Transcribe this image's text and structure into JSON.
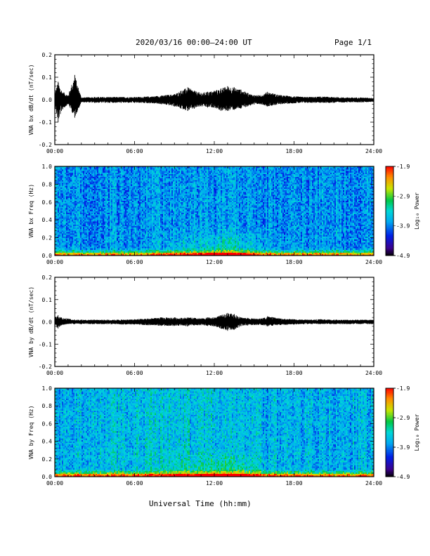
{
  "header": {
    "title": "2020/03/16  00:00–24:00 UT",
    "page": "Page 1/1"
  },
  "x_axis_title": "Universal Time (hh:mm)",
  "chart_data": [
    {
      "type": "line",
      "ylabel": "VNA bx dB/dt (nT/sec)",
      "xlim": [
        0,
        24
      ],
      "ylim": [
        -0.2,
        0.2
      ],
      "x_ticks": [
        "00:00",
        "06:00",
        "12:00",
        "18:00",
        "24:00"
      ],
      "y_ticks": [
        "-0.2",
        "-0.1",
        "0.0",
        "0.1",
        "0.2"
      ],
      "series": [
        {
          "x": [
            0.0,
            0.25,
            0.5,
            1.0,
            1.5,
            2.0,
            3.0,
            4.0,
            5.0,
            6.0,
            7.0,
            8.0,
            9.0,
            9.5,
            10.0,
            10.5,
            11.0,
            11.5,
            12.0,
            12.5,
            13.0,
            13.5,
            14.0,
            14.5,
            15.0,
            15.5,
            16.0,
            17.0,
            18.0,
            19.0,
            20.0,
            21.0,
            22.0,
            23.0,
            24.0
          ],
          "y_max": [
            0.03,
            0.08,
            0.04,
            0.02,
            0.11,
            0.01,
            0.012,
            0.012,
            0.012,
            0.012,
            0.014,
            0.018,
            0.025,
            0.04,
            0.055,
            0.04,
            0.03,
            0.035,
            0.04,
            0.05,
            0.06,
            0.055,
            0.045,
            0.03,
            0.02,
            0.02,
            0.035,
            0.02,
            0.015,
            0.012,
            0.014,
            0.012,
            0.01,
            0.01,
            0.008
          ],
          "y_min": [
            -0.03,
            -0.1,
            -0.05,
            -0.02,
            -0.08,
            -0.012,
            -0.014,
            -0.014,
            -0.014,
            -0.014,
            -0.016,
            -0.02,
            -0.03,
            -0.04,
            -0.05,
            -0.04,
            -0.03,
            -0.035,
            -0.035,
            -0.05,
            -0.05,
            -0.045,
            -0.04,
            -0.03,
            -0.022,
            -0.02,
            -0.03,
            -0.02,
            -0.016,
            -0.014,
            -0.014,
            -0.014,
            -0.012,
            -0.012,
            -0.01
          ]
        }
      ]
    },
    {
      "type": "heatmap",
      "ylabel": "VNA bx Freq (Hz)",
      "xlim": [
        0,
        24
      ],
      "ylim": [
        0.0,
        1.0
      ],
      "x_ticks": [
        "00:00",
        "06:00",
        "12:00",
        "18:00",
        "24:00"
      ],
      "y_ticks": [
        "0.0",
        "0.2",
        "0.4",
        "0.6",
        "0.8",
        "1.0"
      ],
      "colorbar": {
        "label": "Log₁₀ Power",
        "range": [
          -4.9,
          -1.9
        ],
        "ticks": [
          "-1.9",
          "-2.9",
          "-3.9",
          "-4.9"
        ],
        "colormap": "rainbow"
      }
    },
    {
      "type": "line",
      "ylabel": "VNA by dB/dt (nT/sec)",
      "xlim": [
        0,
        24
      ],
      "ylim": [
        -0.2,
        0.2
      ],
      "x_ticks": [
        "00:00",
        "06:00",
        "12:00",
        "18:00",
        "24:00"
      ],
      "y_ticks": [
        "-0.2",
        "-0.1",
        "0.0",
        "0.1",
        "0.2"
      ],
      "series": [
        {
          "x": [
            0.0,
            0.25,
            0.5,
            1.0,
            1.5,
            2.0,
            3.0,
            4.0,
            5.0,
            6.0,
            7.0,
            8.0,
            9.0,
            9.5,
            10.0,
            10.5,
            11.0,
            11.5,
            12.0,
            12.5,
            13.0,
            13.5,
            14.0,
            14.5,
            15.0,
            15.5,
            16.0,
            17.0,
            18.0,
            19.0,
            20.0,
            21.0,
            22.0,
            23.0,
            24.0
          ],
          "y_max": [
            0.02,
            0.03,
            0.02,
            0.015,
            0.01,
            0.01,
            0.01,
            0.01,
            0.01,
            0.012,
            0.015,
            0.02,
            0.02,
            0.018,
            0.02,
            0.018,
            0.015,
            0.02,
            0.02,
            0.03,
            0.04,
            0.035,
            0.02,
            0.018,
            0.015,
            0.015,
            0.025,
            0.015,
            0.012,
            0.01,
            0.012,
            0.01,
            0.01,
            0.01,
            0.01
          ],
          "y_min": [
            -0.02,
            -0.03,
            -0.015,
            -0.01,
            -0.01,
            -0.01,
            -0.01,
            -0.01,
            -0.012,
            -0.012,
            -0.015,
            -0.018,
            -0.018,
            -0.016,
            -0.02,
            -0.016,
            -0.015,
            -0.018,
            -0.02,
            -0.03,
            -0.04,
            -0.035,
            -0.02,
            -0.016,
            -0.014,
            -0.014,
            -0.02,
            -0.014,
            -0.012,
            -0.01,
            -0.01,
            -0.01,
            -0.01,
            -0.01,
            -0.01
          ]
        }
      ]
    },
    {
      "type": "heatmap",
      "ylabel": "VNA by Freq (Hz)",
      "xlim": [
        0,
        24
      ],
      "ylim": [
        0.0,
        1.0
      ],
      "x_ticks": [
        "00:00",
        "06:00",
        "12:00",
        "18:00",
        "24:00"
      ],
      "y_ticks": [
        "0.0",
        "0.2",
        "0.4",
        "0.6",
        "0.8",
        "1.0"
      ],
      "colorbar": {
        "label": "Log₁₀ Power",
        "range": [
          -4.9,
          -1.9
        ],
        "ticks": [
          "-1.9",
          "-2.9",
          "-3.9",
          "-4.9"
        ],
        "colormap": "rainbow"
      }
    }
  ]
}
